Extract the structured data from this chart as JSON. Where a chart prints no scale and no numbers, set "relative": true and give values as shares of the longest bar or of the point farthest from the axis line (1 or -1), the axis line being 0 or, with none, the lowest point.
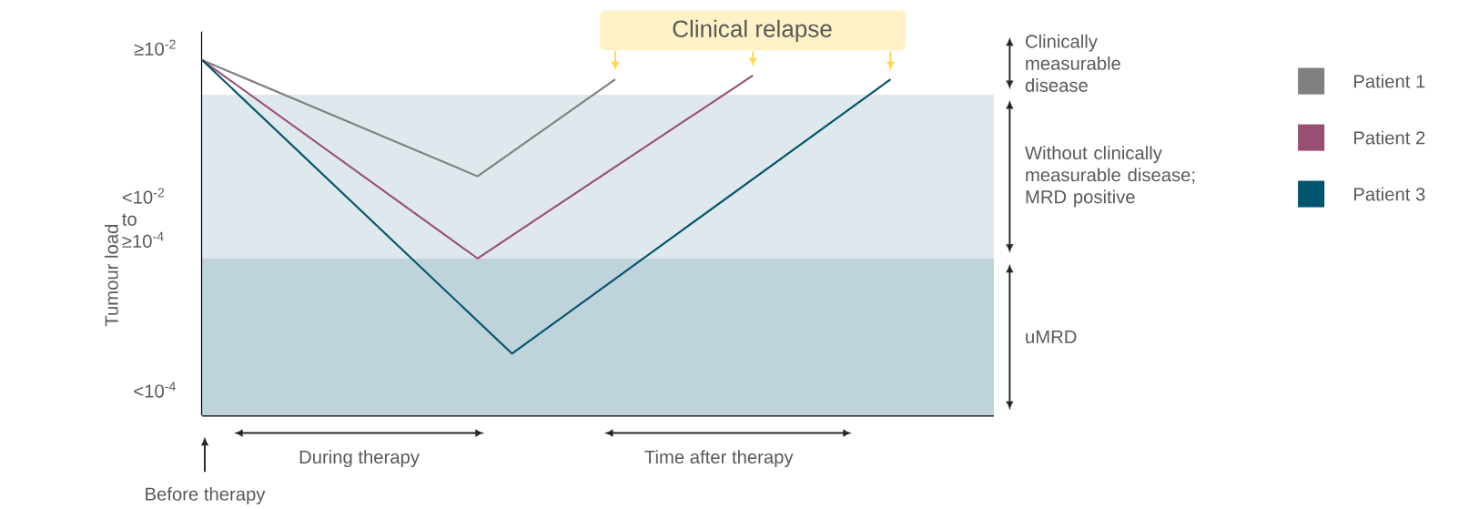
{
  "chart_data": {
    "type": "line",
    "relative": true,
    "ylabel": "Tumour load",
    "legend": "right",
    "marker": "none",
    "line_style": "solid",
    "categories": [
      null,
      null,
      null,
      null,
      null,
      null,
      null,
      null,
      null,
      null,
      null,
      null,
      null,
      null,
      null,
      null,
      null,
      null,
      null,
      null,
      null
    ],
    "series": [
      {
        "name": "Patient 1",
        "color": "#808080",
        "values": [
          1,
          null,
          null,
          null,
          null,
          null,
          null,
          null,
          0.673,
          null,
          null,
          null,
          0.946,
          null,
          null,
          null,
          null,
          null,
          null,
          null,
          null
        ]
      },
      {
        "name": "Patient 2",
        "color": "#994f74",
        "values": [
          1,
          null,
          null,
          null,
          null,
          null,
          null,
          null,
          0.442,
          null,
          null,
          null,
          null,
          null,
          null,
          null,
          0.957,
          null,
          null,
          null,
          null
        ]
      },
      {
        "name": "Patient 3",
        "color": "#00546e",
        "values": [
          1,
          null,
          null,
          null,
          null,
          null,
          null,
          null,
          null,
          0.174,
          null,
          null,
          null,
          null,
          null,
          null,
          null,
          null,
          null,
          null,
          0.946
        ]
      }
    ],
    "bands": [
      {
        "axis": "y",
        "from": 0.903,
        "to": 1.08,
        "label": "Clinically measurable disease",
        "color": "#ffffff"
      },
      {
        "axis": "y",
        "from": 0.442,
        "to": 0.903,
        "label": "Without clinically measurable disease; MRD positive",
        "color": "#dfe8ec"
      },
      {
        "axis": "y",
        "from": 0,
        "to": 0.442,
        "label": "uMRD",
        "color": "#bfd4da"
      }
    ],
    "annotations": [
      "≥10$^{-2}$",
      "<10$^{-2}$ to ≥10$^{-4}$",
      "<10$^{-4}$",
      "Clinical relapse",
      "During therapy",
      "Time after therapy",
      "Before therapy"
    ]
  }
}
